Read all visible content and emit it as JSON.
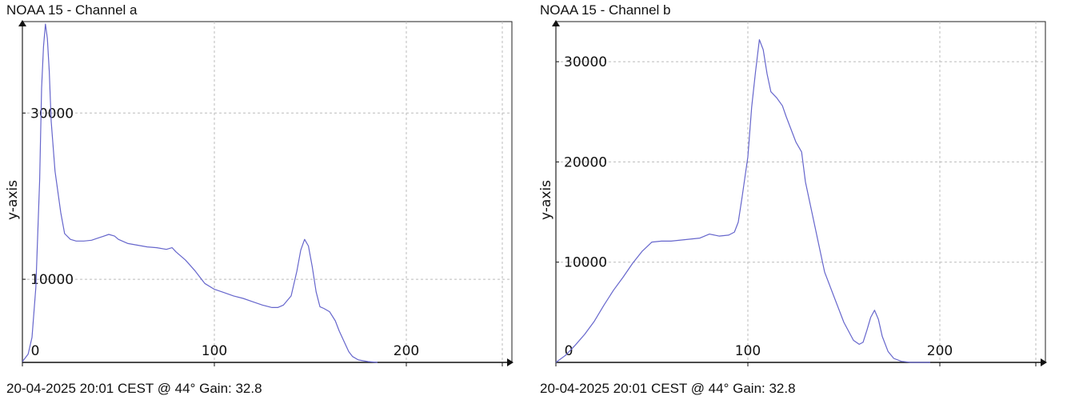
{
  "chart_data": [
    {
      "type": "line",
      "title": "NOAA 15 - Channel a",
      "footer": "20-04-2025 20:01 CEST @ 44° Gain: 32.8",
      "xlabel": "",
      "ylabel": "y-axis",
      "xlim": [
        0,
        255
      ],
      "ylim": [
        0,
        41000
      ],
      "xticks": [
        0,
        100,
        200
      ],
      "yticks": [
        10000,
        30000
      ],
      "grid": true,
      "line_color": "#6666cc",
      "x": [
        0,
        3,
        5,
        7,
        9,
        10,
        11,
        12,
        13,
        14,
        15,
        17,
        20,
        22,
        25,
        28,
        32,
        36,
        40,
        45,
        48,
        50,
        55,
        60,
        65,
        70,
        75,
        78,
        80,
        85,
        90,
        95,
        100,
        105,
        110,
        115,
        120,
        125,
        130,
        133,
        136,
        140,
        143,
        145,
        147,
        149,
        151,
        153,
        155,
        157,
        160,
        163,
        165,
        168,
        170,
        172,
        175,
        180,
        185
      ],
      "y": [
        100,
        1000,
        3000,
        9000,
        22000,
        33000,
        38000,
        40700,
        39000,
        35000,
        29000,
        23000,
        18000,
        15500,
        14800,
        14600,
        14600,
        14700,
        15000,
        15400,
        15200,
        14800,
        14300,
        14100,
        13900,
        13800,
        13600,
        13800,
        13300,
        12300,
        11000,
        9500,
        8800,
        8400,
        8000,
        7700,
        7300,
        6900,
        6600,
        6600,
        6900,
        8000,
        11000,
        13500,
        14800,
        14000,
        11500,
        8500,
        6700,
        6500,
        6100,
        5000,
        3800,
        2300,
        1300,
        700,
        300,
        100,
        0
      ]
    },
    {
      "type": "line",
      "title": "NOAA 15 - Channel b",
      "footer": "20-04-2025 20:01 CEST @ 44° Gain: 32.8",
      "xlabel": "",
      "ylabel": "y-axis",
      "xlim": [
        0,
        255
      ],
      "ylim": [
        0,
        34000
      ],
      "xticks": [
        0,
        100,
        200
      ],
      "yticks": [
        10000,
        20000,
        30000
      ],
      "grid": true,
      "line_color": "#6666cc",
      "x": [
        0,
        5,
        10,
        15,
        20,
        25,
        30,
        35,
        40,
        45,
        50,
        55,
        60,
        65,
        70,
        75,
        80,
        85,
        90,
        93,
        95,
        97,
        100,
        102,
        104,
        106,
        108,
        110,
        112,
        115,
        118,
        120,
        125,
        128,
        130,
        135,
        140,
        145,
        150,
        155,
        158,
        160,
        162,
        164,
        166,
        168,
        170,
        173,
        176,
        180,
        185,
        190,
        195
      ],
      "y": [
        0,
        700,
        1700,
        2800,
        4100,
        5700,
        7200,
        8500,
        9900,
        11100,
        12000,
        12100,
        12100,
        12200,
        12300,
        12400,
        12800,
        12600,
        12700,
        13000,
        14000,
        16500,
        20500,
        25500,
        29000,
        32200,
        31200,
        28800,
        27000,
        26400,
        25600,
        24500,
        22000,
        21000,
        18000,
        13500,
        9000,
        6500,
        4000,
        2200,
        1800,
        2000,
        3200,
        4500,
        5200,
        4300,
        2600,
        1100,
        400,
        100,
        0,
        0,
        0
      ]
    }
  ]
}
